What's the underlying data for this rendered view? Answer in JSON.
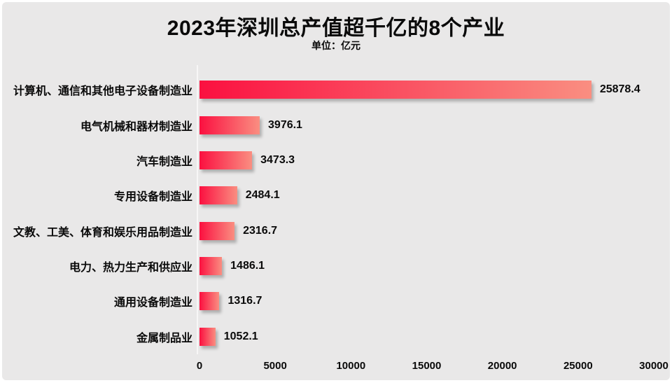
{
  "header": {
    "title": "2023年深圳总产值超千亿的8个产业",
    "subtitle": "单位：亿元"
  },
  "chart_data": {
    "type": "bar",
    "orientation": "horizontal",
    "title": "2023年深圳总产值超千亿的8个产业",
    "subtitle": "单位：亿元",
    "unit": "亿元",
    "categories": [
      "计算机、通信和其他电子设备制造业",
      "电气机械和器材制造业",
      "汽车制造业",
      "专用设备制造业",
      "文教、工美、体育和娱乐用品制造业",
      "电力、热力生产和供应业",
      "通用设备制造业",
      "金属制品业"
    ],
    "values": [
      25878.4,
      3976.1,
      3473.3,
      2484.1,
      2316.7,
      1486.1,
      1316.7,
      1052.1
    ],
    "xlim": [
      0,
      30000
    ],
    "x_ticks": [
      0,
      5000,
      10000,
      15000,
      20000,
      25000,
      30000
    ],
    "grid": false,
    "legend": false,
    "colors": {
      "bar_gradient_start": "#fb1040",
      "bar_gradient_end": "#fa8e81",
      "background": "#e9e8e8",
      "frame": "#ffffff",
      "text": "#0a0a0a",
      "axis_line": "#f7f6f6"
    }
  }
}
